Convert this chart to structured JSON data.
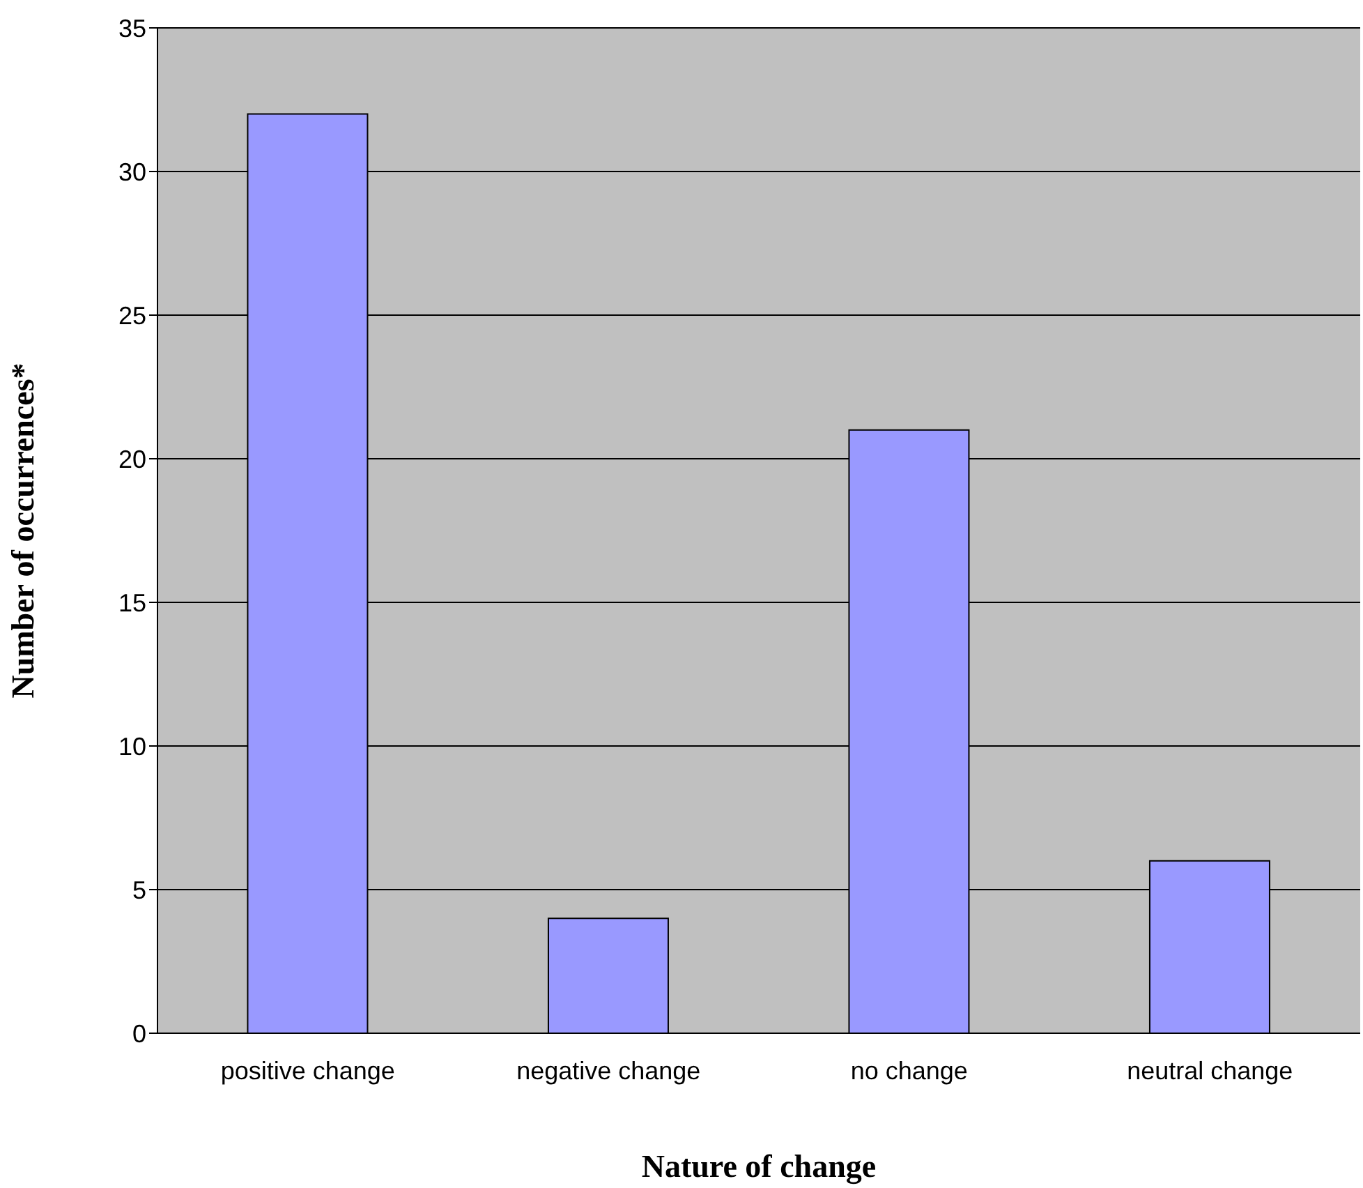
{
  "chart_data": {
    "type": "bar",
    "xlabel": "Nature of change",
    "ylabel": "Number of occurrences*",
    "categories": [
      "positive change",
      "negative change",
      "no change",
      "neutral change"
    ],
    "values": [
      32,
      4,
      21,
      6
    ],
    "color": "#9999ff",
    "ylim": [
      0,
      35
    ],
    "yticks": [
      0,
      5,
      10,
      15,
      20,
      25,
      30,
      35
    ],
    "grid": "y"
  }
}
